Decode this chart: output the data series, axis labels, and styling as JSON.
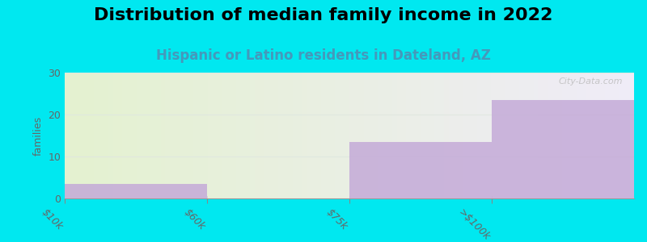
{
  "title": "Distribution of median family income in 2022",
  "subtitle": "Hispanic or Latino residents in Dateland, AZ",
  "categories": [
    "$10k",
    "$60k",
    "$75k",
    ">$100k"
  ],
  "bin_edges": [
    0,
    1,
    2,
    3,
    4
  ],
  "values": [
    3.5,
    0,
    13.5,
    23.5
  ],
  "bar_color": "#c4aad8",
  "bar_alpha": 0.85,
  "background_outer": "#00e8f0",
  "plot_bg_left": "#e4f2d0",
  "plot_bg_right": "#f0ecf8",
  "ylabel": "families",
  "ylim": [
    0,
    30
  ],
  "yticks": [
    0,
    10,
    20,
    30
  ],
  "title_fontsize": 16,
  "subtitle_fontsize": 12,
  "subtitle_color": "#4499bb",
  "watermark": "City-Data.com",
  "tick_label_rotation": -45,
  "grid_color": "#e0e8e0",
  "grid_alpha": 0.9
}
